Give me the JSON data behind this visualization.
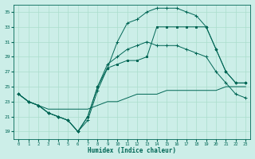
{
  "xlabel": "Humidex (Indice chaleur)",
  "bg_color": "#cceee8",
  "grid_color": "#aaddcc",
  "line_color": "#006655",
  "xlim": [
    -0.5,
    23.5
  ],
  "ylim": [
    18,
    36
  ],
  "yticks": [
    19,
    21,
    23,
    25,
    27,
    29,
    31,
    33,
    35
  ],
  "xticks": [
    0,
    1,
    2,
    3,
    4,
    5,
    6,
    7,
    8,
    9,
    10,
    11,
    12,
    13,
    14,
    15,
    16,
    17,
    18,
    19,
    20,
    21,
    22,
    23
  ],
  "lines": [
    {
      "x": [
        0,
        1,
        2,
        3,
        4,
        5,
        6,
        7,
        8,
        9,
        10,
        11,
        12,
        13,
        14,
        15,
        16,
        17,
        18,
        19,
        20,
        21,
        22,
        23
      ],
      "y": [
        24,
        23,
        22.5,
        21.5,
        21,
        20.5,
        19,
        20.5,
        24.5,
        27.5,
        31,
        33.5,
        34,
        35,
        35.5,
        35.5,
        35.5,
        35,
        34.5,
        33,
        30,
        27,
        25.5,
        25.5
      ],
      "marker": "+"
    },
    {
      "x": [
        0,
        1,
        2,
        3,
        4,
        5,
        6,
        7,
        8,
        9,
        10,
        11,
        12,
        13,
        14,
        15,
        16,
        17,
        18,
        19,
        20,
        21,
        22,
        23
      ],
      "y": [
        24,
        23,
        22.5,
        21.5,
        21,
        20.5,
        19,
        21,
        25,
        28,
        29,
        30,
        30.5,
        31,
        30.5,
        30.5,
        30.5,
        30,
        29.5,
        29,
        27,
        25.5,
        24,
        23.5
      ],
      "marker": "+"
    },
    {
      "x": [
        0,
        1,
        2,
        3,
        4,
        5,
        6,
        7,
        8,
        9,
        10,
        11,
        12,
        13,
        14,
        15,
        16,
        17,
        18,
        19,
        20,
        21,
        22,
        23
      ],
      "y": [
        24,
        23,
        22.5,
        21.5,
        21,
        20.5,
        19,
        21,
        25,
        27.5,
        28,
        28.5,
        28.5,
        29,
        33,
        33,
        33,
        33,
        33,
        33,
        30,
        27,
        25.5,
        25.5
      ],
      "marker": "s"
    },
    {
      "x": [
        0,
        1,
        2,
        3,
        4,
        5,
        6,
        7,
        8,
        9,
        10,
        11,
        12,
        13,
        14,
        15,
        16,
        17,
        18,
        19,
        20,
        21,
        22,
        23
      ],
      "y": [
        24,
        23,
        22.5,
        22,
        22,
        22,
        22,
        22,
        22.5,
        23,
        23,
        23.5,
        24,
        24,
        24,
        24.5,
        24.5,
        24.5,
        24.5,
        24.5,
        24.5,
        25,
        25,
        25
      ],
      "marker": null
    }
  ]
}
